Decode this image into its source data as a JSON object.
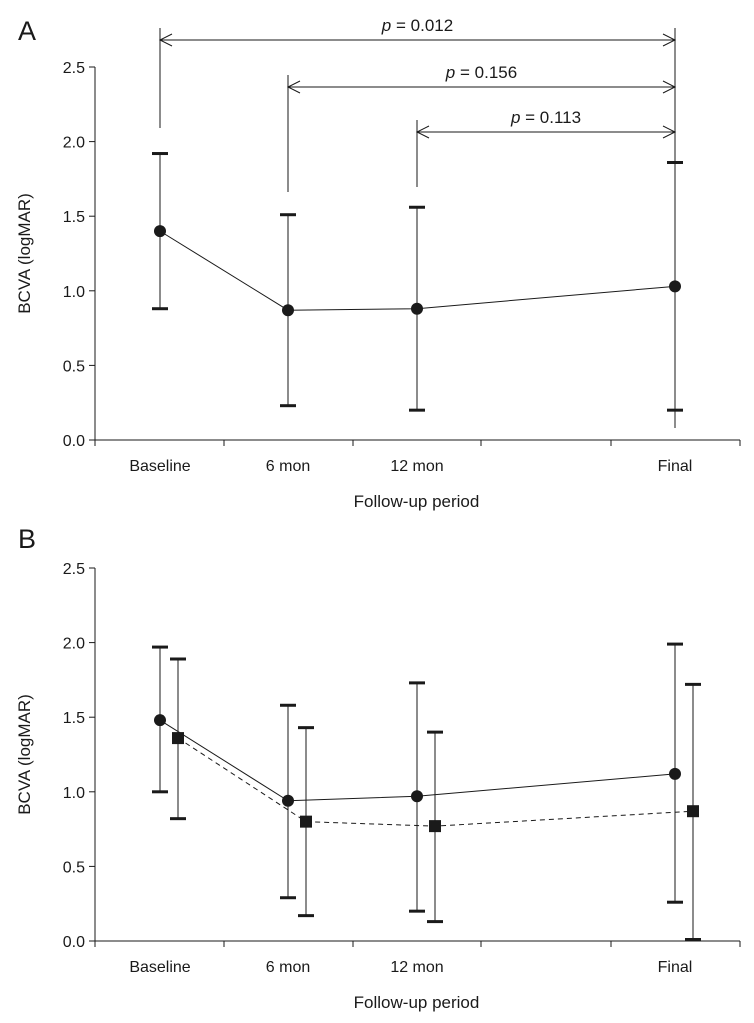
{
  "chart_data": [
    {
      "type": "line",
      "panel_label": "A",
      "xlabel": "Follow-up period",
      "ylabel": "BCVA (logMAR)",
      "categories": [
        "Baseline",
        "6 mon",
        "12 mon",
        "Final"
      ],
      "ylim": [
        0.0,
        2.5
      ],
      "yticks": [
        "0.0",
        "0.5",
        "1.0",
        "1.5",
        "2.0",
        "2.5"
      ],
      "grid": false,
      "series": [
        {
          "marker": "circle",
          "line_style": "solid",
          "values": [
            1.4,
            0.87,
            0.88,
            1.03
          ],
          "error_upper": [
            1.92,
            1.51,
            1.56,
            1.86
          ],
          "error_lower": [
            0.88,
            0.23,
            0.2,
            0.2
          ]
        }
      ],
      "comparisons": [
        {
          "from": "Baseline",
          "to": "Final",
          "p_label": "p",
          "p_value": " = 0.012"
        },
        {
          "from": "6 mon",
          "to": "Final",
          "p_label": "p",
          "p_value": " = 0.156"
        },
        {
          "from": "12 mon",
          "to": "Final",
          "p_label": "p",
          "p_value": " = 0.113"
        }
      ]
    },
    {
      "type": "line",
      "panel_label": "B",
      "xlabel": "Follow-up period",
      "ylabel": "BCVA (logMAR)",
      "categories": [
        "Baseline",
        "6 mon",
        "12 mon",
        "Final"
      ],
      "ylim": [
        0.0,
        2.5
      ],
      "yticks": [
        "0.0",
        "0.5",
        "1.0",
        "1.5",
        "2.0",
        "2.5"
      ],
      "grid": false,
      "series": [
        {
          "marker": "circle",
          "line_style": "solid",
          "values": [
            1.48,
            0.94,
            0.97,
            1.12
          ],
          "error_upper": [
            1.97,
            1.58,
            1.73,
            1.99
          ],
          "error_lower": [
            1.0,
            0.29,
            0.2,
            0.26
          ]
        },
        {
          "marker": "square",
          "line_style": "dashed",
          "values": [
            1.36,
            0.8,
            0.77,
            0.87
          ],
          "error_upper": [
            1.89,
            1.43,
            1.4,
            1.72
          ],
          "error_lower": [
            0.82,
            0.17,
            0.13,
            0.01
          ]
        }
      ],
      "comparisons": []
    }
  ]
}
